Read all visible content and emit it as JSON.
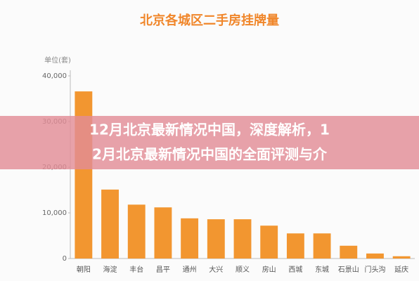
{
  "chart_data": {
    "type": "bar",
    "title": "北京各城区二手房挂牌量",
    "y_label": "单位(套)",
    "categories": [
      "朝阳",
      "海淀",
      "丰台",
      "昌平",
      "通州",
      "大兴",
      "顺义",
      "房山",
      "西城",
      "东城",
      "石景山",
      "门头沟",
      "延庆"
    ],
    "values": [
      36600,
      15100,
      11800,
      11200,
      8800,
      8600,
      8600,
      7200,
      5500,
      5500,
      2800,
      1100,
      500
    ],
    "color": "#f29630",
    "ylim": [
      0,
      40000
    ],
    "yticks": [
      0,
      {
        "value": 10000,
        "label": "10,000"
      },
      {
        "value": 20000,
        "label": "20,000"
      },
      {
        "value": 30000,
        "label": "30,000"
      },
      {
        "value": 40000,
        "label": "40,000"
      }
    ],
    "grid": false,
    "annotations": [
      "12月北京最新情况中国，深度解析，1",
      "2月北京最新情况中国的全面评测与介"
    ]
  }
}
